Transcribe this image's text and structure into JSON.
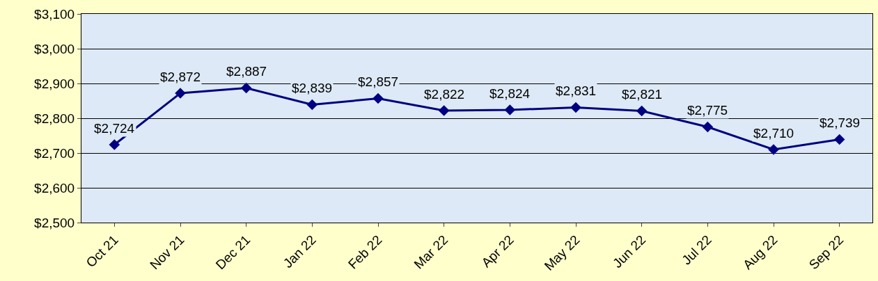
{
  "chart_data": {
    "type": "line",
    "categories": [
      "Oct 21",
      "Nov 21",
      "Dec 21",
      "Jan 22",
      "Feb 22",
      "Mar 22",
      "Apr 22",
      "May 22",
      "Jun 22",
      "Jul 22",
      "Aug 22",
      "Sep 22"
    ],
    "series": [
      {
        "color": "#000080",
        "values": [
          2724,
          2872,
          2887,
          2839,
          2857,
          2822,
          2824,
          2831,
          2821,
          2775,
          2710,
          2739
        ],
        "value_labels": [
          "$2,724",
          "$2,872",
          "$2,887",
          "$2,839",
          "$2,857",
          "$2,822",
          "$2,824",
          "$2,831",
          "$2,821",
          "$2,775",
          "$2,710",
          "$2,739"
        ]
      }
    ],
    "ylim": [
      2500,
      3100
    ],
    "yticks": [
      {
        "value": 2500,
        "label": "$2,500"
      },
      {
        "value": 2600,
        "label": "$2,600"
      },
      {
        "value": 2700,
        "label": "$2,700"
      },
      {
        "value": 2800,
        "label": "$2,800"
      },
      {
        "value": 2900,
        "label": "$2,900"
      },
      {
        "value": 3000,
        "label": "$3,000"
      },
      {
        "value": 3100,
        "label": "$3,100"
      }
    ],
    "grid": "y",
    "marker": "diamond",
    "line_style": "solid",
    "legend": false
  }
}
